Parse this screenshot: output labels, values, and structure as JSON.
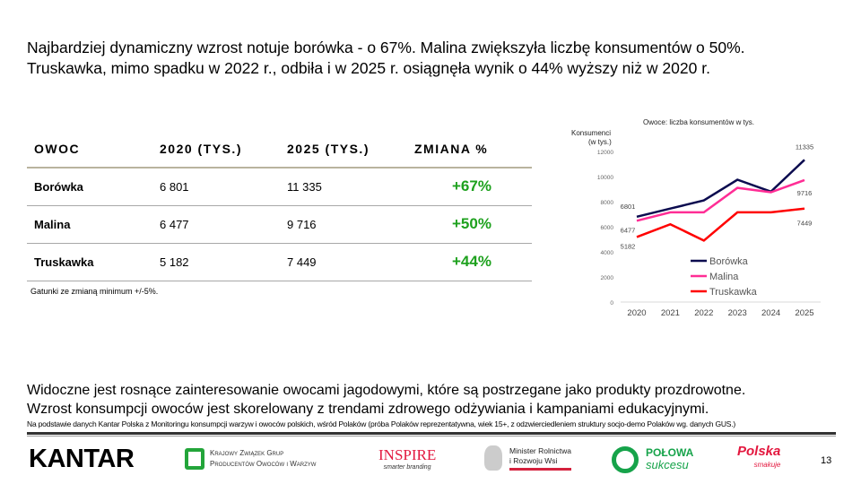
{
  "headline": [
    "Najbardziej dynamiczny wzrost notuje borówka - o 67%. Malina zwiększyła liczbę konsumentów o 50%.",
    "Truskawka, mimo spadku w 2022 r., odbiła i w 2025 r. osiągnęła wynik o 44% wyższy niż w 2020 r."
  ],
  "table": {
    "headers": [
      "OWOC",
      "2020 (TYS.)",
      "2025 (TYS.)",
      "ZMIANA %"
    ],
    "rows": [
      [
        "Borówka",
        "6 801",
        "11 335",
        "+67%"
      ],
      [
        "Malina",
        "6 477",
        "9 716",
        "+50%"
      ],
      [
        "Truskawka",
        "5 182",
        "7 449",
        "+44%"
      ]
    ],
    "note": "Gatunki ze zmianą minimum +/-5%.",
    "change_color": "#1ea11e"
  },
  "chart_data": {
    "type": "line",
    "title": "Owoce: liczba konsumentów w tys.",
    "ylabel": "Konsumenci (w tys.)",
    "ylabel_lines": [
      "Konsumenci",
      "(w tys.)"
    ],
    "categories": [
      "2020",
      "2021",
      "2022",
      "2023",
      "2024",
      "2025"
    ],
    "ylim": [
      0,
      12000
    ],
    "yticks": [
      "0",
      "2000",
      "4000",
      "6000",
      "8000",
      "10000",
      "12000"
    ],
    "grid": false,
    "legend": "center",
    "series": [
      {
        "name": "Borówka",
        "color": "#0b0b4f",
        "values": [
          6801,
          7450,
          8100,
          9750,
          8800,
          11335
        ],
        "labels": [
          "6801",
          "",
          "",
          "",
          "",
          "11335"
        ]
      },
      {
        "name": "Malina",
        "color": "#ff2d95",
        "values": [
          6477,
          7150,
          7150,
          9100,
          8750,
          9716
        ],
        "labels": [
          "6477",
          "",
          "",
          "",
          "",
          "9716"
        ]
      },
      {
        "name": "Truskawka",
        "color": "#ff0000",
        "values": [
          5182,
          6200,
          4900,
          7150,
          7150,
          7449
        ],
        "labels": [
          "5182",
          "",
          "",
          "",
          "",
          "7449"
        ]
      }
    ]
  },
  "bottom_text": [
    "Widoczne jest rosnące zainteresowanie owocami jagodowymi, które są postrzegane jako produkty prozdrowotne.",
    "Wzrost konsumpcji owoców jest skorelowany z trendami zdrowego odżywiania i kampaniami edukacyjnymi."
  ],
  "source": "Na podstawie danych Kantar Polska z Monitoringu konsumpcji warzyw i owoców polskich, wśród Polaków (próba Polaków reprezentatywna, wiek 15+, z odzwierciedleniem struktury socjo-demo Polaków wg. danych GUS.)",
  "logos": {
    "kantar": "KANTAR",
    "kzgp1": "Krajowy Związek Grup",
    "kzgp2": "Producentów Owoców i Warzyw",
    "inspire": "INSPIRE",
    "inspire_sub": "smarter branding",
    "ministry1": "Minister Rolnictwa",
    "ministry2": "i Rozwoju Wsi",
    "polowa1": "POŁOWA",
    "polowa2": "sukcesu",
    "polska1": "Polska",
    "polska2": "smakuje"
  },
  "page_number": "13"
}
